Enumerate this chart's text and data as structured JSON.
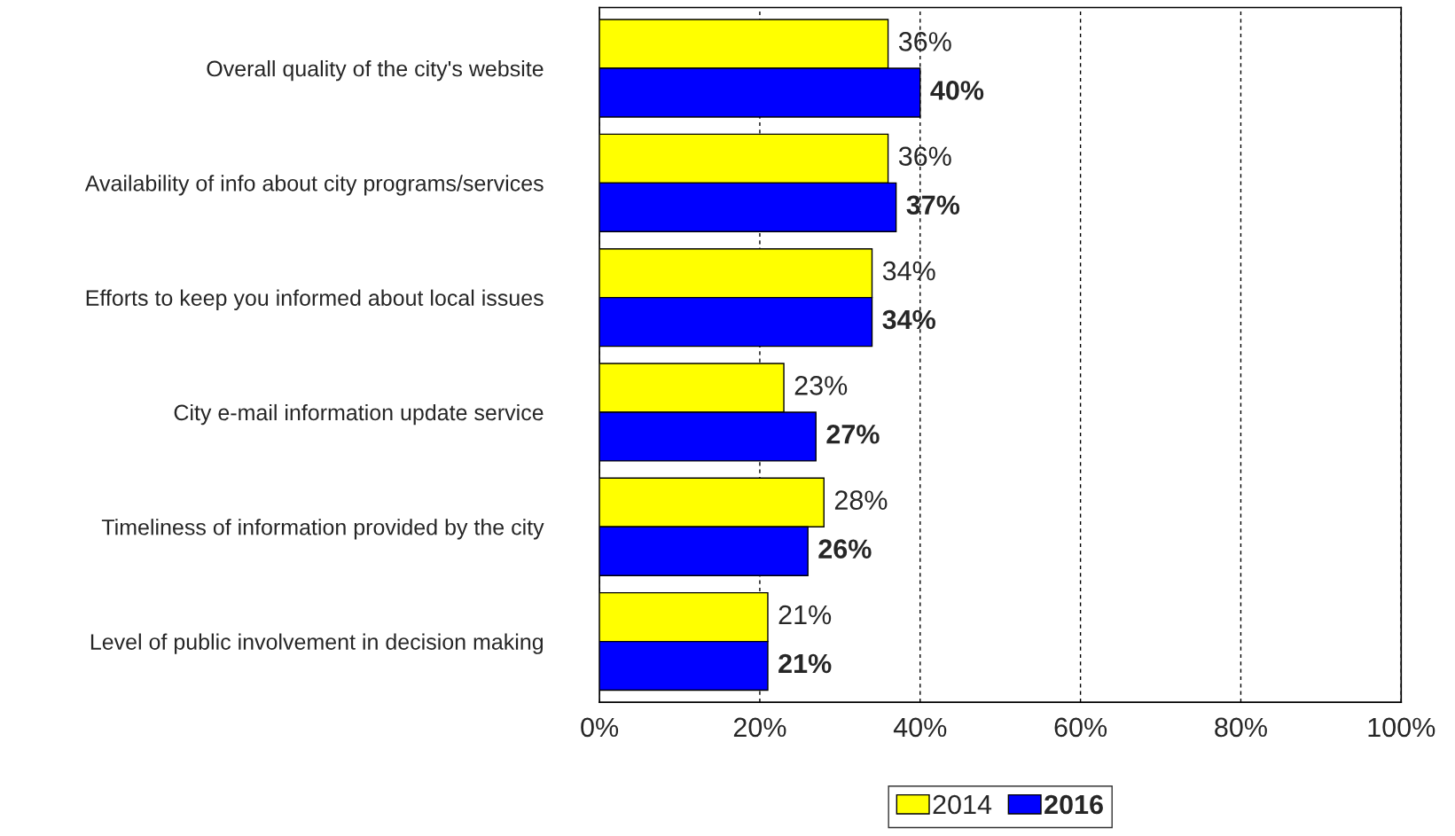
{
  "chart_data": {
    "type": "bar",
    "orientation": "horizontal",
    "categories": [
      "Overall quality of the city's website",
      "Availability of info about city programs/services",
      "Efforts to keep you informed about local issues",
      "City e-mail information update service",
      "Timeliness of information provided by the city",
      "Level of public involvement in decision making"
    ],
    "series": [
      {
        "name": "2014",
        "color": "#ffff00",
        "values": [
          36,
          36,
          34,
          23,
          28,
          21
        ],
        "value_labels": [
          "36%",
          "36%",
          "34%",
          "23%",
          "28%",
          "21%"
        ]
      },
      {
        "name": "2016",
        "color": "#0000ff",
        "values": [
          40,
          37,
          34,
          27,
          26,
          21
        ],
        "value_labels": [
          "40%",
          "37%",
          "34%",
          "27%",
          "26%",
          "21%"
        ]
      }
    ],
    "xlim": [
      0,
      100
    ],
    "xticks": [
      {
        "value": 0,
        "label": "0%"
      },
      {
        "value": 20,
        "label": "20%"
      },
      {
        "value": 40,
        "label": "40%"
      },
      {
        "value": 60,
        "label": "60%"
      },
      {
        "value": 80,
        "label": "80%"
      },
      {
        "value": 100,
        "label": "100%"
      }
    ],
    "grid": "x",
    "legend": "bottom"
  }
}
